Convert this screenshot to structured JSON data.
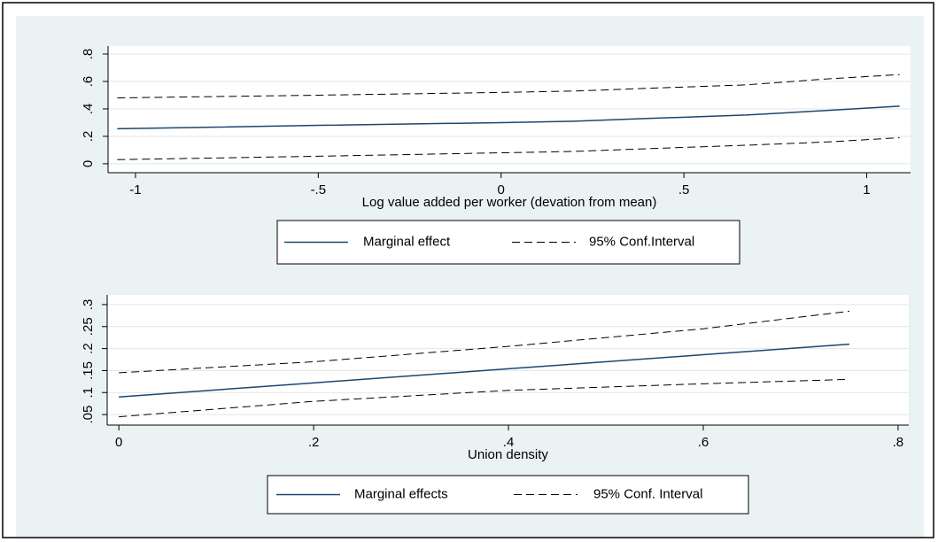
{
  "chart_data": [
    {
      "type": "line",
      "x_title": "Log value added per worker (devation from mean)",
      "xlim": [
        -1.075,
        1.12
      ],
      "ylim": [
        -0.065,
        0.858
      ],
      "xticks": [
        -1,
        {
          "value": -0.5,
          "label": "-.5"
        },
        0,
        {
          "value": 0.5,
          "label": ".5"
        },
        1
      ],
      "yticks": [
        0,
        {
          "value": 0.2,
          "label": ".2"
        },
        {
          "value": 0.4,
          "label": ".4"
        },
        {
          "value": 0.6,
          "label": ".6"
        },
        {
          "value": 0.8,
          "label": ".8"
        }
      ],
      "grid": true,
      "x": [
        -1.05,
        -0.5,
        0,
        0.2,
        0.4,
        0.67,
        0.9,
        1.09
      ],
      "series": [
        {
          "name": "Marginal effect",
          "color": "#1a476f",
          "dashed": false,
          "values": [
            0.255,
            0.28,
            0.3,
            0.31,
            0.33,
            0.355,
            0.39,
            0.42
          ]
        },
        {
          "name": "95% Conf.Interval",
          "color": "#000000",
          "dashed": true,
          "upper": [
            0.48,
            0.5,
            0.52,
            0.53,
            0.55,
            0.575,
            0.62,
            0.65
          ],
          "lower": [
            0.03,
            0.055,
            0.08,
            0.09,
            0.11,
            0.135,
            0.16,
            0.19
          ]
        }
      ]
    },
    {
      "type": "line",
      "x_title": "Union density",
      "xlim": [
        -0.012,
        0.811
      ],
      "ylim": [
        0.026,
        0.322
      ],
      "xticks": [
        0,
        {
          "value": 0.2,
          "label": ".2"
        },
        {
          "value": 0.4,
          "label": ".4"
        },
        {
          "value": 0.6,
          "label": ".6"
        },
        {
          "value": 0.8,
          "label": ".8"
        }
      ],
      "yticks": [
        {
          "value": 0.05,
          "label": ".05"
        },
        {
          "value": 0.1,
          "label": ".1"
        },
        {
          "value": 0.15,
          "label": ".15"
        },
        {
          "value": 0.2,
          "label": ".2"
        },
        {
          "value": 0.25,
          "label": ".25"
        },
        {
          "value": 0.3,
          "label": ".3"
        }
      ],
      "grid": true,
      "x": [
        0,
        0.2,
        0.4,
        0.6,
        0.75
      ],
      "series": [
        {
          "name": "Marginal effects",
          "color": "#1a476f",
          "dashed": false,
          "values": [
            0.09,
            0.122,
            0.154,
            0.186,
            0.21
          ]
        },
        {
          "name": "95% Conf. Interval",
          "color": "#000000",
          "dashed": true,
          "upper": [
            0.145,
            0.17,
            0.205,
            0.245,
            0.285
          ],
          "lower": [
            0.045,
            0.08,
            0.105,
            0.12,
            0.13
          ]
        }
      ]
    }
  ]
}
